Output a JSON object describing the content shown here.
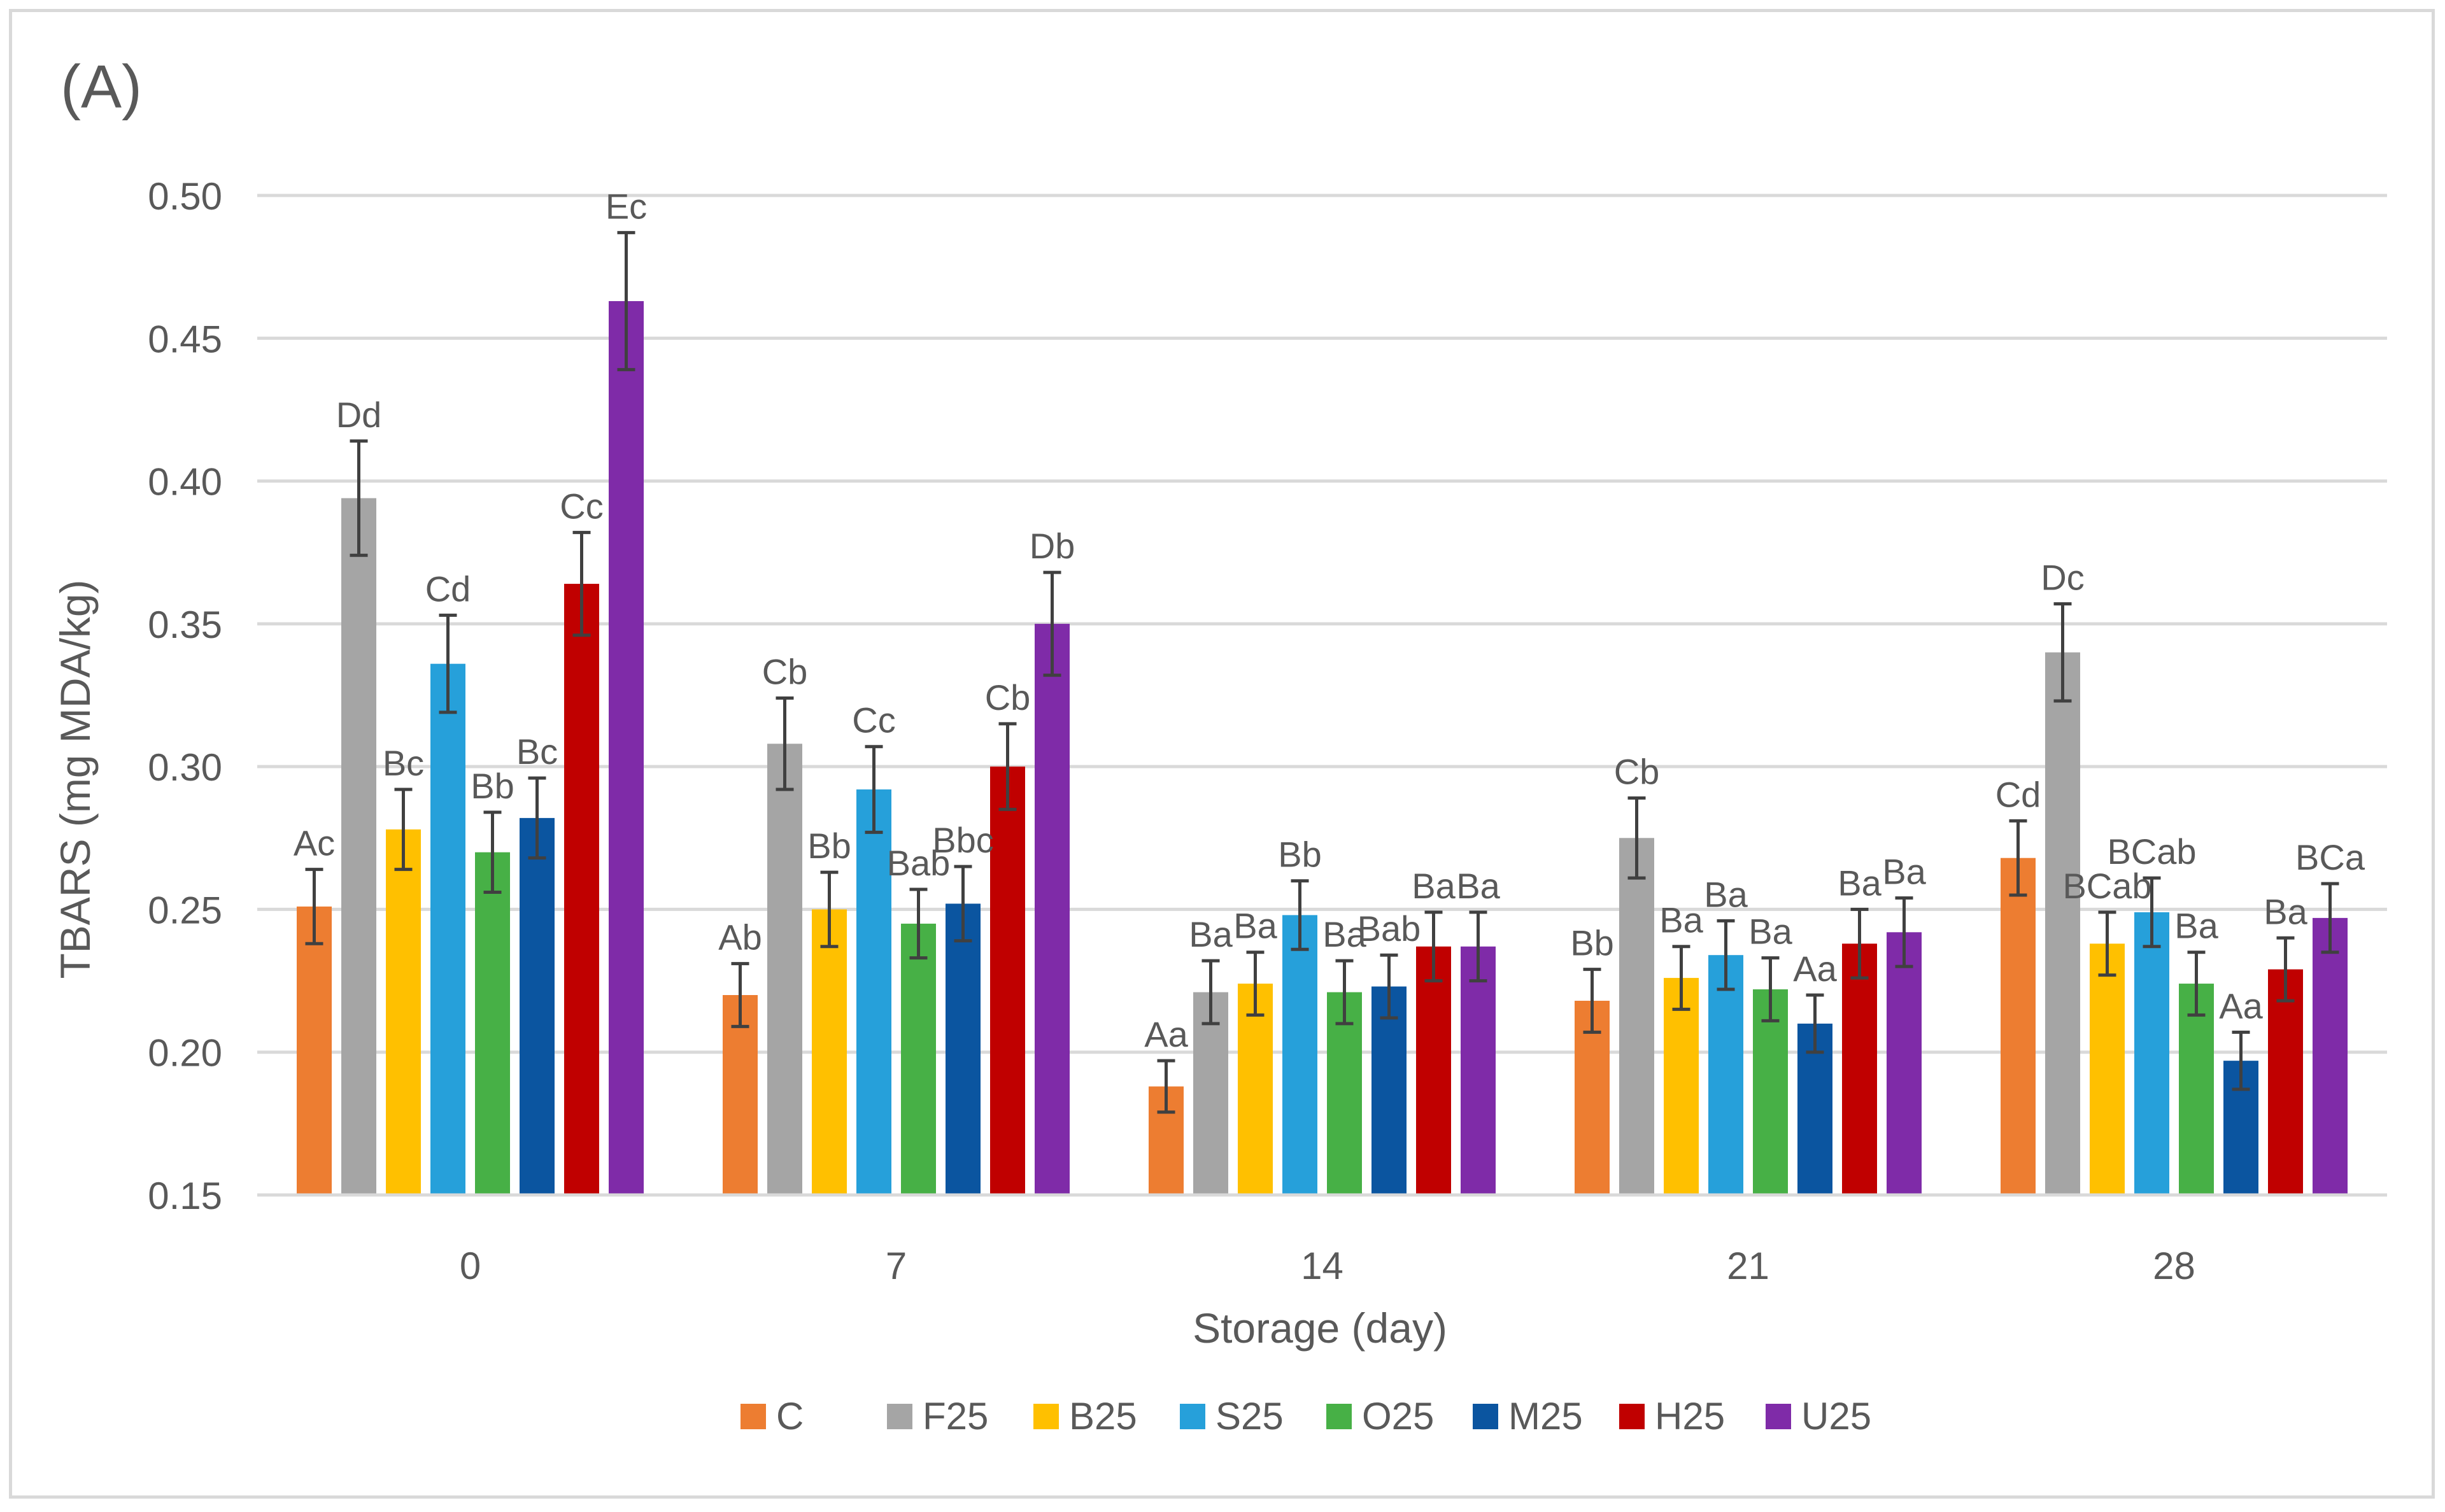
{
  "chart_data": {
    "type": "bar",
    "panel_label": "(A)",
    "title": "",
    "xlabel": "Storage (day)",
    "ylabel": "TBARS (mg MDA/kg)",
    "ylim": [
      0.15,
      0.5
    ],
    "yticks": [
      "0.15",
      "0.20",
      "0.25",
      "0.30",
      "0.35",
      "0.40",
      "0.45",
      "0.50"
    ],
    "grid": true,
    "legend_position": "bottom",
    "categories": [
      "0",
      "7",
      "14",
      "21",
      "28"
    ],
    "series": [
      {
        "name": "C",
        "color": "#ed7d31",
        "values": [
          0.251,
          0.22,
          0.188,
          0.218,
          0.268
        ],
        "errors": [
          0.013,
          0.011,
          0.009,
          0.011,
          0.013
        ],
        "labels": [
          "Ac",
          "Ab",
          "Aa",
          "Bb",
          "Cd"
        ]
      },
      {
        "name": "F25",
        "color": "#a5a5a5",
        "values": [
          0.394,
          0.308,
          0.221,
          0.275,
          0.34
        ],
        "errors": [
          0.02,
          0.016,
          0.011,
          0.014,
          0.017
        ],
        "labels": [
          "Dd",
          "Cb",
          "Ba",
          "Cb",
          "Dc"
        ]
      },
      {
        "name": "B25",
        "color": "#ffc000",
        "values": [
          0.278,
          0.25,
          0.224,
          0.226,
          0.238
        ],
        "errors": [
          0.014,
          0.013,
          0.011,
          0.011,
          0.011
        ],
        "labels": [
          "Bc",
          "Bb",
          "Ba",
          "Ba",
          "BCab"
        ]
      },
      {
        "name": "S25",
        "color": "#26a0da",
        "values": [
          0.336,
          0.292,
          0.248,
          0.234,
          0.249
        ],
        "errors": [
          0.017,
          0.015,
          0.012,
          0.012,
          0.012
        ],
        "labels": [
          "Cd",
          "Cc",
          "Bb",
          "Ba",
          "BCab"
        ]
      },
      {
        "name": "O25",
        "color": "#47b046",
        "values": [
          0.27,
          0.245,
          0.221,
          0.222,
          0.224
        ],
        "errors": [
          0.014,
          0.012,
          0.011,
          0.011,
          0.011
        ],
        "labels": [
          "Bb",
          "Bab",
          "Ba",
          "Ba",
          "Ba"
        ]
      },
      {
        "name": "M25",
        "color": "#0b55a0",
        "values": [
          0.282,
          0.252,
          0.223,
          0.21,
          0.197
        ],
        "errors": [
          0.014,
          0.013,
          0.011,
          0.01,
          0.01
        ],
        "labels": [
          "Bc",
          "Bbc",
          "Bab",
          "Aa",
          "Aa"
        ]
      },
      {
        "name": "H25",
        "color": "#c00000",
        "values": [
          0.364,
          0.3,
          0.237,
          0.238,
          0.229
        ],
        "errors": [
          0.018,
          0.015,
          0.012,
          0.012,
          0.011
        ],
        "labels": [
          "Cc",
          "Cb",
          "Ba",
          "Ba",
          "Ba"
        ]
      },
      {
        "name": "U25",
        "color": "#7f2ba8",
        "values": [
          0.463,
          0.35,
          0.237,
          0.242,
          0.247
        ],
        "errors": [
          0.024,
          0.018,
          0.012,
          0.012,
          0.012
        ],
        "labels": [
          "Ec",
          "Db",
          "Ba",
          "Ba",
          "BCa"
        ]
      }
    ]
  }
}
